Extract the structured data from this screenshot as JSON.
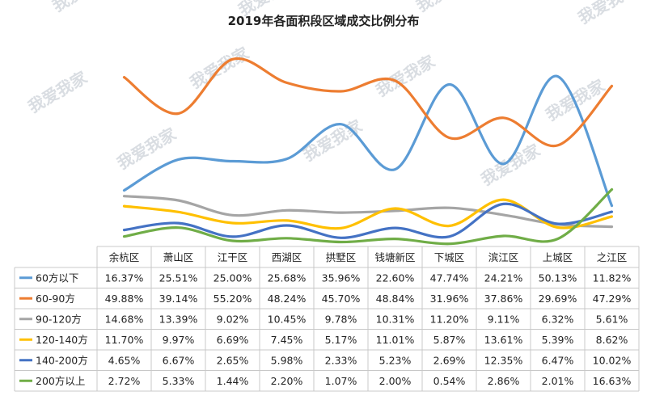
{
  "watermark": "我爱我家",
  "chart_data": {
    "type": "line",
    "title": "2019年各面积段区域成交比例分布",
    "categories": [
      "余杭区",
      "萧山区",
      "江干区",
      "西湖区",
      "拱墅区",
      "钱塘新区",
      "下城区",
      "滨江区",
      "上城区",
      "之江区"
    ],
    "series": [
      {
        "name": "60方以下",
        "color": "#5b9bd5",
        "values": [
          16.37,
          25.51,
          25.0,
          25.68,
          35.96,
          22.6,
          47.74,
          24.21,
          50.13,
          11.82
        ],
        "labels": [
          "16.37%",
          "25.51%",
          "25.00%",
          "25.68%",
          "35.96%",
          "22.60%",
          "47.74%",
          "24.21%",
          "50.13%",
          "11.82%"
        ]
      },
      {
        "name": "60-90方",
        "color": "#ed7d31",
        "values": [
          49.88,
          39.14,
          55.2,
          48.24,
          45.7,
          48.84,
          31.96,
          37.86,
          29.69,
          47.29
        ],
        "labels": [
          "49.88%",
          "39.14%",
          "55.20%",
          "48.24%",
          "45.70%",
          "48.84%",
          "31.96%",
          "37.86%",
          "29.69%",
          "47.29%"
        ]
      },
      {
        "name": "90-120方",
        "color": "#a5a5a5",
        "values": [
          14.68,
          13.39,
          9.02,
          10.45,
          9.78,
          10.31,
          11.2,
          9.11,
          6.32,
          5.61
        ],
        "labels": [
          "14.68%",
          "13.39%",
          "9.02%",
          "10.45%",
          "9.78%",
          "10.31%",
          "11.20%",
          "9.11%",
          "6.32%",
          "5.61%"
        ]
      },
      {
        "name": "120-140方",
        "color": "#ffc000",
        "values": [
          11.7,
          9.97,
          6.69,
          7.45,
          5.17,
          11.01,
          5.87,
          13.61,
          5.39,
          8.62
        ],
        "labels": [
          "11.70%",
          "9.97%",
          "6.69%",
          "7.45%",
          "5.17%",
          "11.01%",
          "5.87%",
          "13.61%",
          "5.39%",
          "8.62%"
        ]
      },
      {
        "name": "140-200方",
        "color": "#4472c4",
        "values": [
          4.65,
          6.67,
          2.65,
          5.98,
          2.33,
          5.23,
          2.69,
          12.35,
          6.47,
          10.02
        ],
        "labels": [
          "4.65%",
          "6.67%",
          "2.65%",
          "5.98%",
          "2.33%",
          "5.23%",
          "2.69%",
          "12.35%",
          "6.47%",
          "10.02%"
        ]
      },
      {
        "name": "200方以上",
        "color": "#70ad47",
        "values": [
          2.72,
          5.33,
          1.44,
          2.2,
          1.07,
          2.0,
          0.54,
          2.86,
          2.01,
          16.63
        ],
        "labels": [
          "2.72%",
          "5.33%",
          "1.44%",
          "2.20%",
          "1.07%",
          "2.00%",
          "0.54%",
          "2.86%",
          "2.01%",
          "16.63%"
        ]
      }
    ],
    "ylim": [
      0,
      56
    ],
    "grid": false,
    "legend": "data table"
  }
}
